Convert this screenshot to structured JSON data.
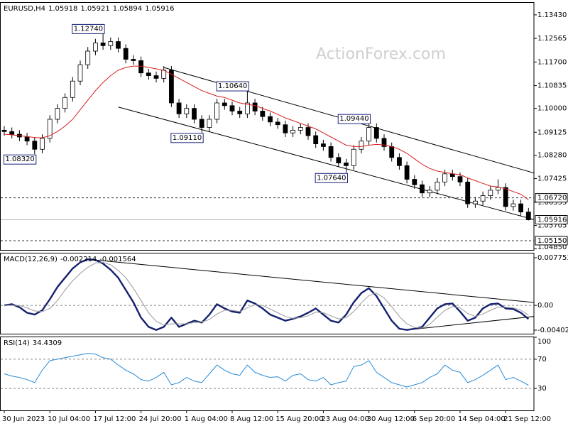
{
  "chart_data": [
    {
      "type": "candlestick",
      "header": {
        "symbol": "EURUSD,H4",
        "ohlc": [
          1.05918,
          1.05921,
          1.05894,
          1.05916
        ]
      },
      "watermark": "ActionForex.com",
      "categories": [
        "30 Jun 2023",
        null,
        null,
        null,
        null,
        null,
        "10 Jul 04:00",
        null,
        null,
        null,
        null,
        null,
        "17 Jul 12:00",
        null,
        null,
        null,
        null,
        null,
        "24 Jul 20:00",
        null,
        null,
        null,
        null,
        null,
        "1 Aug 04:00",
        null,
        null,
        null,
        null,
        null,
        "8 Aug 12:00",
        null,
        null,
        null,
        null,
        null,
        "15 Aug 20:00",
        null,
        null,
        null,
        null,
        null,
        "23 Aug 04:00",
        null,
        null,
        null,
        null,
        null,
        "30 Aug 12:00",
        null,
        null,
        null,
        null,
        null,
        "6 Sep 20:00",
        null,
        null,
        null,
        null,
        null,
        "14 Sep 04:00",
        null,
        null,
        null,
        null,
        null,
        "21 Sep 12:00",
        null,
        null,
        null
      ],
      "open": [
        1.092,
        1.0915,
        1.0905,
        1.0895,
        1.088,
        1.085,
        1.089,
        1.096,
        1.1,
        1.104,
        1.11,
        1.116,
        1.121,
        1.124,
        1.123,
        1.1245,
        1.122,
        1.118,
        1.1175,
        1.113,
        1.112,
        1.111,
        1.114,
        1.102,
        1.098,
        1.1,
        1.096,
        1.093,
        1.096,
        1.102,
        1.101,
        1.099,
        1.098,
        1.102,
        1.099,
        1.097,
        1.095,
        1.094,
        1.091,
        1.092,
        1.093,
        1.09,
        1.087,
        1.086,
        1.082,
        1.08,
        1.079,
        1.085,
        1.088,
        1.093,
        1.089,
        1.086,
        1.082,
        1.079,
        1.074,
        1.072,
        1.069,
        1.07,
        1.073,
        1.076,
        1.075,
        1.073,
        1.065,
        1.066,
        1.068,
        1.07,
        1.071,
        1.064,
        1.065,
        1.062
      ],
      "high": [
        1.0935,
        1.093,
        1.092,
        1.091,
        1.0895,
        1.0905,
        1.0975,
        1.1015,
        1.1055,
        1.1115,
        1.1175,
        1.1225,
        1.1255,
        1.1274,
        1.126,
        1.126,
        1.1235,
        1.1195,
        1.119,
        1.1145,
        1.1135,
        1.1155,
        1.1155,
        1.1035,
        1.1015,
        1.1015,
        1.0975,
        1.0975,
        1.1035,
        1.1035,
        1.1025,
        1.1005,
        1.1064,
        1.1035,
        1.1005,
        1.0985,
        1.0965,
        1.0955,
        1.0935,
        1.0945,
        1.0945,
        1.0915,
        1.0885,
        1.0875,
        1.0835,
        1.0815,
        1.0865,
        1.0895,
        1.0944,
        1.0945,
        1.0905,
        1.0875,
        1.0835,
        1.0805,
        1.0755,
        1.0735,
        1.0715,
        1.0745,
        1.0775,
        1.0775,
        1.0765,
        1.0745,
        1.0675,
        1.0695,
        1.0715,
        1.074,
        1.0725,
        1.0665,
        1.0665,
        1.0635
      ],
      "low": [
        1.09,
        1.089,
        1.088,
        1.0865,
        1.0832,
        1.0835,
        1.0875,
        1.0945,
        1.0985,
        1.1025,
        1.1085,
        1.1145,
        1.1195,
        1.1215,
        1.1215,
        1.1205,
        1.1165,
        1.116,
        1.1115,
        1.1105,
        1.1095,
        1.1095,
        1.1005,
        1.0965,
        1.0965,
        1.0945,
        1.0911,
        1.0915,
        1.0945,
        1.0995,
        1.0975,
        1.0965,
        1.0965,
        1.0975,
        1.0955,
        1.0935,
        1.0925,
        1.0895,
        1.0895,
        1.0905,
        1.0885,
        1.0855,
        1.0845,
        1.0805,
        1.0785,
        1.0764,
        1.0775,
        1.0835,
        1.0865,
        1.0875,
        1.0845,
        1.0805,
        1.0775,
        1.0725,
        1.0705,
        1.0675,
        1.0675,
        1.0685,
        1.0715,
        1.0735,
        1.0715,
        1.0635,
        1.0635,
        1.0645,
        1.0665,
        1.0685,
        1.0625,
        1.0625,
        1.0605,
        1.0589
      ],
      "close": [
        1.0915,
        1.0905,
        1.0895,
        1.088,
        1.085,
        1.089,
        1.096,
        1.1,
        1.104,
        1.11,
        1.116,
        1.121,
        1.124,
        1.123,
        1.1245,
        1.122,
        1.118,
        1.1175,
        1.113,
        1.112,
        1.111,
        1.114,
        1.102,
        1.098,
        1.1,
        1.096,
        1.093,
        1.096,
        1.102,
        1.101,
        1.099,
        1.098,
        1.102,
        1.099,
        1.097,
        1.095,
        1.094,
        1.091,
        1.092,
        1.093,
        1.09,
        1.087,
        1.086,
        1.082,
        1.08,
        1.079,
        1.085,
        1.088,
        1.093,
        1.089,
        1.086,
        1.082,
        1.079,
        1.074,
        1.072,
        1.069,
        1.07,
        1.073,
        1.076,
        1.075,
        1.073,
        1.065,
        1.066,
        1.068,
        1.07,
        1.071,
        1.064,
        1.065,
        1.062,
        1.05916
      ],
      "series": [
        {
          "color": "#d81f1f",
          "values": [
            1.0905,
            1.0903,
            1.09,
            1.0897,
            1.0893,
            1.0892,
            1.09,
            1.0915,
            1.0935,
            1.096,
            1.0995,
            1.103,
            1.1065,
            1.1095,
            1.112,
            1.114,
            1.115,
            1.1155,
            1.1155,
            1.115,
            1.1145,
            1.114,
            1.1125,
            1.111,
            1.1095,
            1.108,
            1.1065,
            1.1055,
            1.1045,
            1.104,
            1.103,
            1.102,
            1.1015,
            1.101,
            1.1,
            1.099,
            1.0978,
            1.0965,
            1.0955,
            1.0945,
            1.0935,
            1.0925,
            1.091,
            1.0895,
            1.088,
            1.0865,
            1.086,
            1.086,
            1.0865,
            1.0868,
            1.0866,
            1.086,
            1.085,
            1.0835,
            1.0815,
            1.0795,
            1.078,
            1.077,
            1.0765,
            1.076,
            1.0757,
            1.0745,
            1.0735,
            1.0725,
            1.0715,
            1.0712,
            1.0705,
            1.0695,
            1.0685,
            1.0665
          ]
        }
      ],
      "trendlines": [
        {
          "x": [
            21,
            72
          ],
          "y": [
            1.115,
            1.0745
          ]
        },
        {
          "x": [
            15,
            72
          ],
          "y": [
            1.1005,
            1.0575
          ]
        }
      ],
      "levels": [
        {
          "value": 1.0672,
          "label": "1.06720",
          "style": "dashed"
        },
        {
          "value": 1.05916,
          "label": "1.05916",
          "style": "solid"
        },
        {
          "value": 1.0515,
          "label": "1.05150",
          "style": "dashed"
        }
      ],
      "annotations": [
        {
          "index": 13,
          "value": 1.1274,
          "label": "1.12740"
        },
        {
          "index": 32,
          "value": 1.1064,
          "label": "1.10640"
        },
        {
          "index": 26,
          "value": 1.0911,
          "label": "1.09110"
        },
        {
          "index": 4,
          "value": 1.0832,
          "label": "1.08320"
        },
        {
          "index": 45,
          "value": 1.0764,
          "label": "1.07640"
        },
        {
          "index": 48,
          "value": 1.0944,
          "label": "1.09440"
        }
      ],
      "ylim": [
        1.0481,
        1.1387
      ],
      "yticks": [
        {
          "value": 1.1343,
          "label": "1.13430"
        },
        {
          "value": 1.12565,
          "label": "1.12565"
        },
        {
          "value": 1.117,
          "label": "1.11700"
        },
        {
          "value": 1.10835,
          "label": "1.10835"
        },
        {
          "value": 1.1,
          "label": "1.10000"
        },
        {
          "value": 1.09125,
          "label": "1.09125"
        },
        {
          "value": 1.0828,
          "label": "1.08280"
        },
        {
          "value": 1.07425,
          "label": "1.07425"
        },
        {
          "value": 1.06555,
          "label": "1.06555"
        },
        {
          "value": 1.05705,
          "label": "1.05705"
        },
        {
          "value": 1.0485,
          "label": "1.04850"
        }
      ]
    },
    {
      "type": "line",
      "header": {
        "name": "MACD(12,26,9)",
        "values": [
          -0.002214,
          -0.001564
        ]
      },
      "series": [
        {
          "color": "#14206e",
          "width": 2.4,
          "values": [
            0,
            0.0002,
            -0.0003,
            -0.0012,
            -0.0015,
            -0.0008,
            0.001,
            0.003,
            0.0045,
            0.006,
            0.007,
            0.0075,
            0.0074,
            0.0068,
            0.0058,
            0.0045,
            0.0025,
            0.0005,
            -0.002,
            -0.0035,
            -0.004,
            -0.0035,
            -0.002,
            -0.0035,
            -0.003,
            -0.0025,
            -0.0028,
            -0.0015,
            0.0002,
            -0.0005,
            -0.001,
            -0.0012,
            0.0008,
            0.0003,
            -0.0005,
            -0.0015,
            -0.002,
            -0.0025,
            -0.0022,
            -0.0018,
            -0.0012,
            -0.0005,
            -0.0015,
            -0.0025,
            -0.0028,
            -0.0015,
            0.0005,
            0.002,
            0.0028,
            0.0015,
            -0.0005,
            -0.0025,
            -0.0038,
            -0.004,
            -0.0038,
            -0.0035,
            -0.002,
            -0.0005,
            0.0002,
            0.0003,
            -0.001,
            -0.0025,
            -0.002,
            -0.0005,
            0.0002,
            0.0003,
            -0.0005,
            -0.0006,
            -0.0012,
            -0.002214
          ]
        },
        {
          "color": "#9a9a9a",
          "width": 1,
          "values": [
            0,
            0,
            0,
            -0.0004,
            -0.0009,
            -0.001,
            -0.0005,
            0.0008,
            0.0025,
            0.004,
            0.0052,
            0.0062,
            0.0069,
            0.007,
            0.0066,
            0.0057,
            0.0045,
            0.0028,
            0.0008,
            -0.0012,
            -0.0026,
            -0.0032,
            -0.003,
            -0.003,
            -0.003,
            -0.0028,
            -0.0027,
            -0.0023,
            -0.0014,
            -0.0008,
            -0.0008,
            -0.001,
            -0.0004,
            0.0001,
            0,
            -0.0006,
            -0.0012,
            -0.0018,
            -0.0021,
            -0.002,
            -0.0017,
            -0.0011,
            -0.0012,
            -0.0017,
            -0.0022,
            -0.002,
            -0.001,
            0.0004,
            0.0016,
            0.002,
            0.0012,
            -0.0002,
            -0.0018,
            -0.003,
            -0.0036,
            -0.0037,
            -0.0031,
            -0.0019,
            -0.0008,
            -0.0002,
            -0.0004,
            -0.0013,
            -0.0018,
            -0.0014,
            -0.0008,
            -0.0003,
            -0.0003,
            -0.0004,
            -0.0008,
            -0.001564
          ]
        }
      ],
      "trendlines": [
        {
          "x": [
            11,
            72
          ],
          "y": [
            0.0075,
            0.0002
          ]
        },
        {
          "x": [
            53,
            72
          ],
          "y": [
            -0.004,
            -0.0015
          ]
        }
      ],
      "dashed_levels": [
        0
      ],
      "ylim": [
        -0.00461,
        0.00845
      ],
      "yticks": [
        0.007753,
        {
          "value": 0,
          "label": "0.00"
        },
        -0.004027
      ]
    },
    {
      "type": "line",
      "header": {
        "name": "RSI(14)",
        "values": [
          34.4309
        ]
      },
      "series": [
        {
          "color": "#2a8bd6",
          "width": 1,
          "values": [
            50,
            47,
            45,
            42,
            38,
            55,
            68,
            70,
            72,
            74,
            76,
            78,
            77,
            72,
            70,
            62,
            55,
            50,
            42,
            40,
            45,
            52,
            35,
            38,
            45,
            40,
            38,
            50,
            62,
            55,
            50,
            48,
            62,
            52,
            48,
            45,
            46,
            40,
            48,
            50,
            42,
            40,
            45,
            35,
            38,
            40,
            60,
            62,
            68,
            52,
            45,
            38,
            35,
            32,
            35,
            38,
            45,
            50,
            62,
            55,
            52,
            38,
            42,
            48,
            55,
            62,
            42,
            45,
            40,
            34.4309
          ]
        }
      ],
      "dashed_levels": [
        70,
        30
      ],
      "ylim": [
        0,
        100
      ],
      "yticks": [
        100,
        70,
        30
      ]
    }
  ]
}
